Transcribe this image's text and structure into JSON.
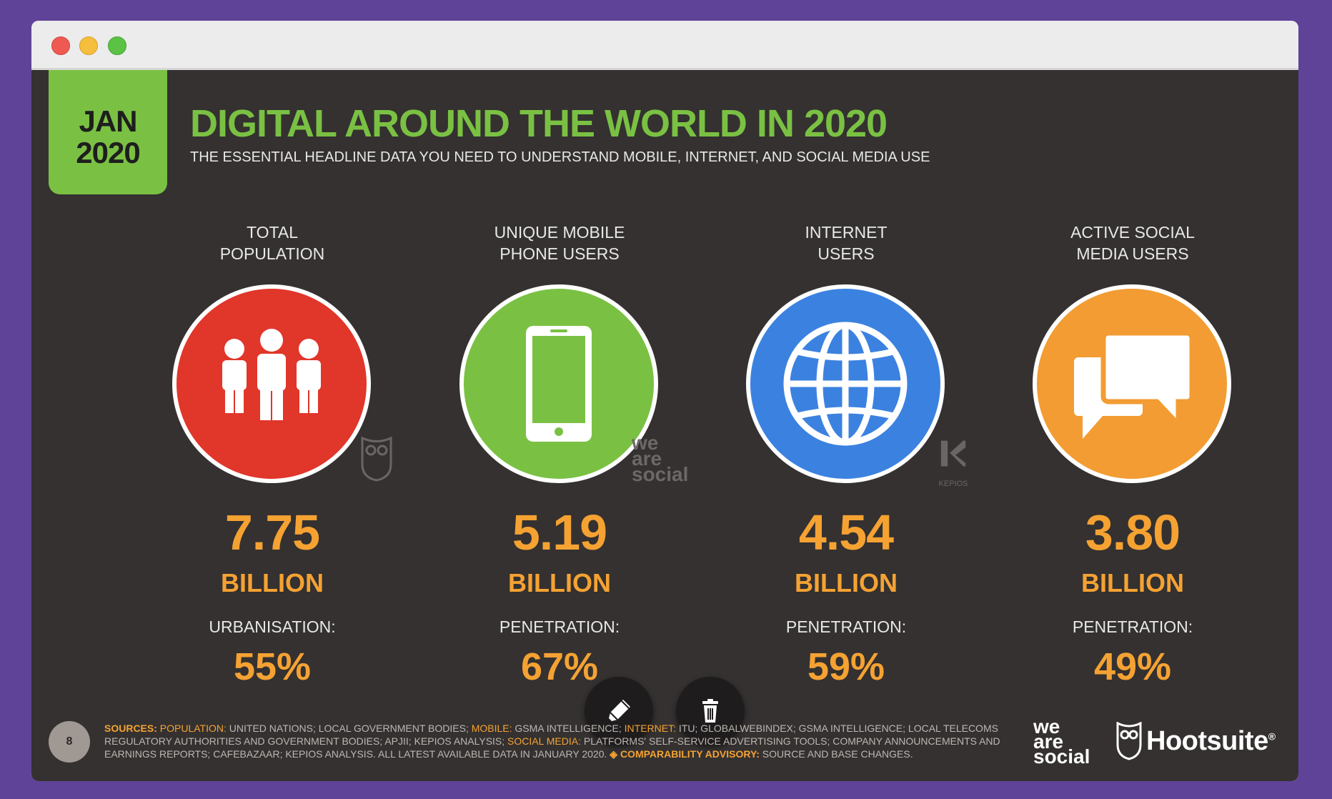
{
  "slide": {
    "date_month": "JAN",
    "date_year": "2020",
    "title": "DIGITAL AROUND THE WORLD IN 2020",
    "subtitle": "THE ESSENTIAL HEADLINE DATA YOU NEED TO UNDERSTAND MOBILE, INTERNET, AND SOCIAL MEDIA USE",
    "page_number": "8"
  },
  "stats": [
    {
      "label_line1": "TOTAL",
      "label_line2": "POPULATION",
      "value": "7.75",
      "unit": "BILLION",
      "metric_label": "URBANISATION:",
      "metric_value": "55%",
      "icon": "people-icon",
      "color": "#e1362a"
    },
    {
      "label_line1": "UNIQUE MOBILE",
      "label_line2": "PHONE USERS",
      "value": "5.19",
      "unit": "BILLION",
      "metric_label": "PENETRATION:",
      "metric_value": "67%",
      "icon": "mobile-phone-icon",
      "color": "#7ac143"
    },
    {
      "label_line1": "INTERNET",
      "label_line2": "USERS",
      "value": "4.54",
      "unit": "BILLION",
      "metric_label": "PENETRATION:",
      "metric_value": "59%",
      "icon": "globe-icon",
      "color": "#3b82e0"
    },
    {
      "label_line1": "ACTIVE SOCIAL",
      "label_line2": "MEDIA USERS",
      "value": "3.80",
      "unit": "BILLION",
      "metric_label": "PENETRATION:",
      "metric_value": "49%",
      "icon": "chat-bubbles-icon",
      "color": "#f29c33"
    }
  ],
  "watermarks": {
    "owl": "hootsuite-owl-icon",
    "was_line1": "we",
    "was_line2": "are",
    "was_line3": "social",
    "kepios_label": "KEPIOS"
  },
  "sources": {
    "sources_label": "SOURCES:",
    "population_label": "POPULATION:",
    "population_text": " UNITED NATIONS; LOCAL GOVERNMENT BODIES; ",
    "mobile_label": "MOBILE:",
    "mobile_text": " GSMA INTELLIGENCE; ",
    "internet_label": "INTERNET:",
    "internet_text": " ITU; GLOBALWEBINDEX; GSMA INTELLIGENCE; LOCAL TELECOMS REGULATORY AUTHORITIES AND GOVERNMENT BODIES; APJII; KEPIOS ANALYSIS; ",
    "social_label": "SOCIAL MEDIA:",
    "social_text": " PLATFORMS' SELF-SERVICE ADVERTISING TOOLS; COMPANY ANNOUNCEMENTS AND EARNINGS REPORTS; CAFEBAZAAR; KEPIOS ANALYSIS. ALL LATEST AVAILABLE DATA IN JANUARY 2020. ",
    "advisory_label": "◈ COMPARABILITY ADVISORY:",
    "advisory_text": " SOURCE AND BASE CHANGES."
  },
  "logos": {
    "was_line1": "we",
    "was_line2": "are",
    "was_line3": "social",
    "hootsuite": "Hootsuite",
    "hootsuite_mark": "®"
  },
  "actions": {
    "edit_icon": "pencil-icon",
    "delete_icon": "trash-icon"
  },
  "window_controls": [
    "close",
    "minimize",
    "maximize"
  ]
}
